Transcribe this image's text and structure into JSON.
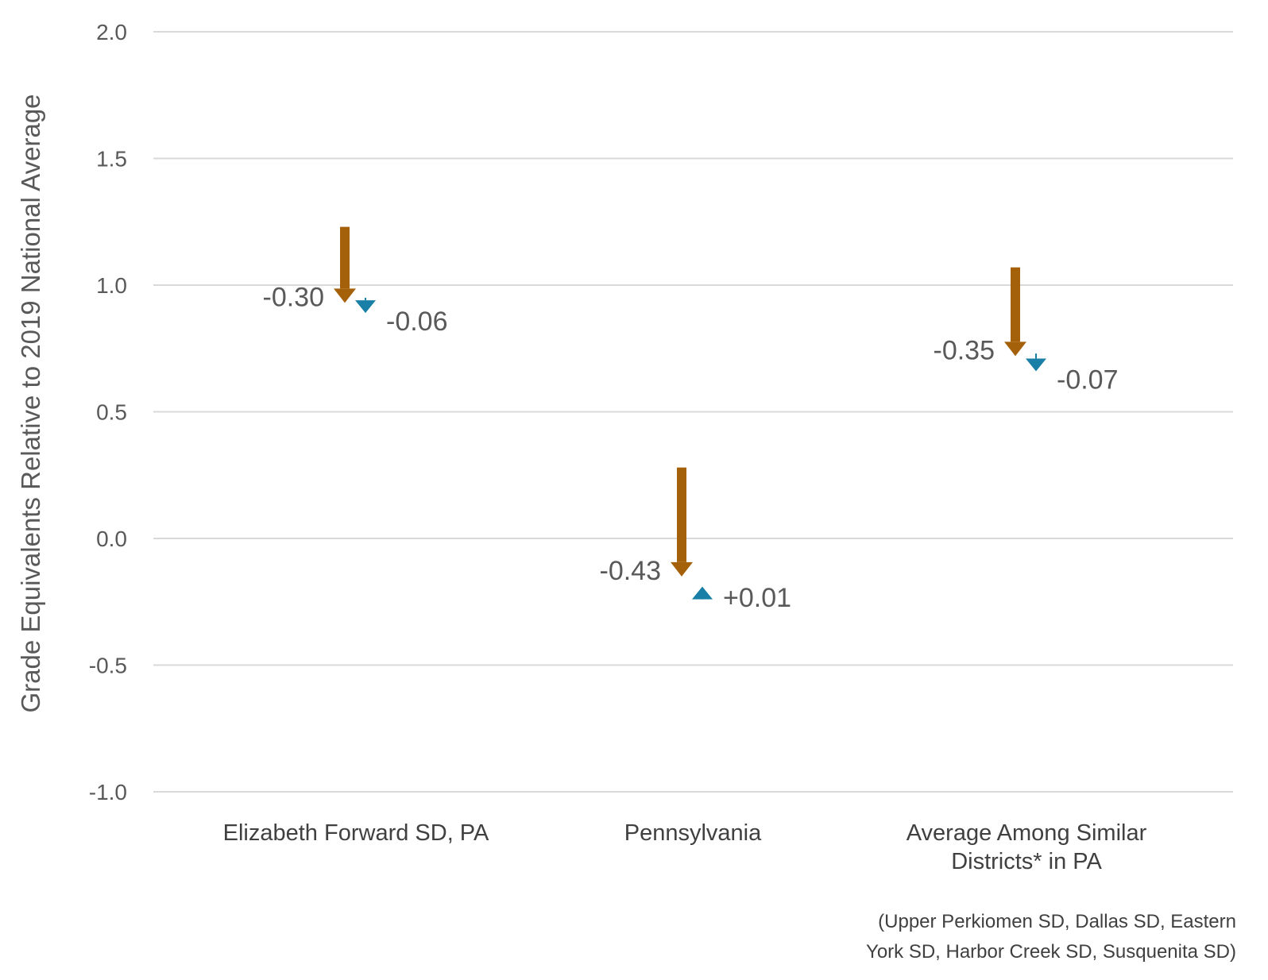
{
  "chart_data": {
    "type": "arrow",
    "ylabel": "Grade Equivalents Relative to 2019 National Average",
    "ylim": [
      -1.0,
      2.0
    ],
    "yticks": [
      {
        "value": 2.0,
        "label": "2.0"
      },
      {
        "value": 1.5,
        "label": "1.5"
      },
      {
        "value": 1.0,
        "label": "1.0"
      },
      {
        "value": 0.5,
        "label": "0.5"
      },
      {
        "value": 0.0,
        "label": "0.0"
      },
      {
        "value": -0.5,
        "label": "-0.5"
      },
      {
        "value": -1.0,
        "label": "-1.0"
      }
    ],
    "grid": true,
    "categories": [
      {
        "lines": [
          "Elizabeth Forward SD, PA"
        ]
      },
      {
        "lines": [
          "Pennsylvania"
        ]
      },
      {
        "lines": [
          "Average Among Similar",
          "Districts* in PA"
        ]
      }
    ],
    "series": [
      {
        "color": "#a5610a",
        "points": [
          {
            "category": 0,
            "start": 1.23,
            "end": 0.93,
            "label": "-0.30"
          },
          {
            "category": 1,
            "start": 0.28,
            "end": -0.15,
            "label": "-0.43"
          },
          {
            "category": 2,
            "start": 1.07,
            "end": 0.72,
            "label": "-0.35"
          }
        ]
      },
      {
        "color": "#1a7fa6",
        "points": [
          {
            "category": 0,
            "start": 0.95,
            "end": 0.89,
            "label": "-0.06"
          },
          {
            "category": 1,
            "start": -0.2,
            "end": -0.19,
            "label": "+0.01"
          },
          {
            "category": 2,
            "start": 0.73,
            "end": 0.66,
            "label": "-0.07"
          }
        ]
      }
    ],
    "footnote": [
      "(Upper Perkiomen SD, Dallas SD, Eastern",
      "York SD, Harbor Creek SD, Susquenita SD)"
    ]
  }
}
